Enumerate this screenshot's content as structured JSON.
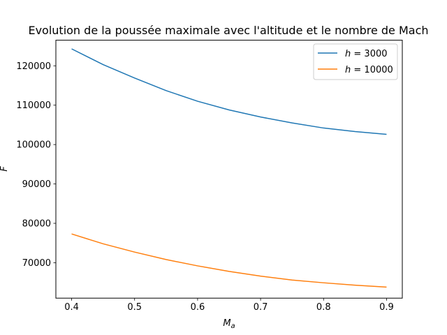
{
  "chart_data": {
    "type": "line",
    "title": "Evolution de la poussée maximale avec l'altitude et le nombre de Mach",
    "xlabel": "M",
    "xlabel_sub": "a",
    "ylabel": "F",
    "xlim": [
      0.375,
      0.925
    ],
    "ylim": [
      61000,
      126500
    ],
    "xticks": [
      0.4,
      0.5,
      0.6,
      0.7,
      0.8,
      0.9
    ],
    "xtick_labels": [
      "0.4",
      "0.5",
      "0.6",
      "0.7",
      "0.8",
      "0.9"
    ],
    "yticks": [
      70000,
      80000,
      90000,
      100000,
      110000,
      120000
    ],
    "ytick_labels": [
      "70000",
      "80000",
      "90000",
      "100000",
      "110000",
      "120000"
    ],
    "grid": false,
    "legend_position": "top-right",
    "x": [
      0.4,
      0.45,
      0.5,
      0.55,
      0.6,
      0.65,
      0.7,
      0.75,
      0.8,
      0.85,
      0.9
    ],
    "series": [
      {
        "name": "h = 3000",
        "legend_var": "h",
        "legend_value": "3000",
        "color": "#1f77b4",
        "values": [
          124300,
          120300,
          116900,
          113700,
          111000,
          108800,
          107000,
          105500,
          104200,
          103300,
          102600
        ]
      },
      {
        "name": "h = 10000",
        "legend_var": "h",
        "legend_value": "10000",
        "color": "#ff7f0e",
        "values": [
          77300,
          74800,
          72700,
          70800,
          69200,
          67800,
          66600,
          65600,
          64900,
          64300,
          63800
        ]
      }
    ]
  }
}
